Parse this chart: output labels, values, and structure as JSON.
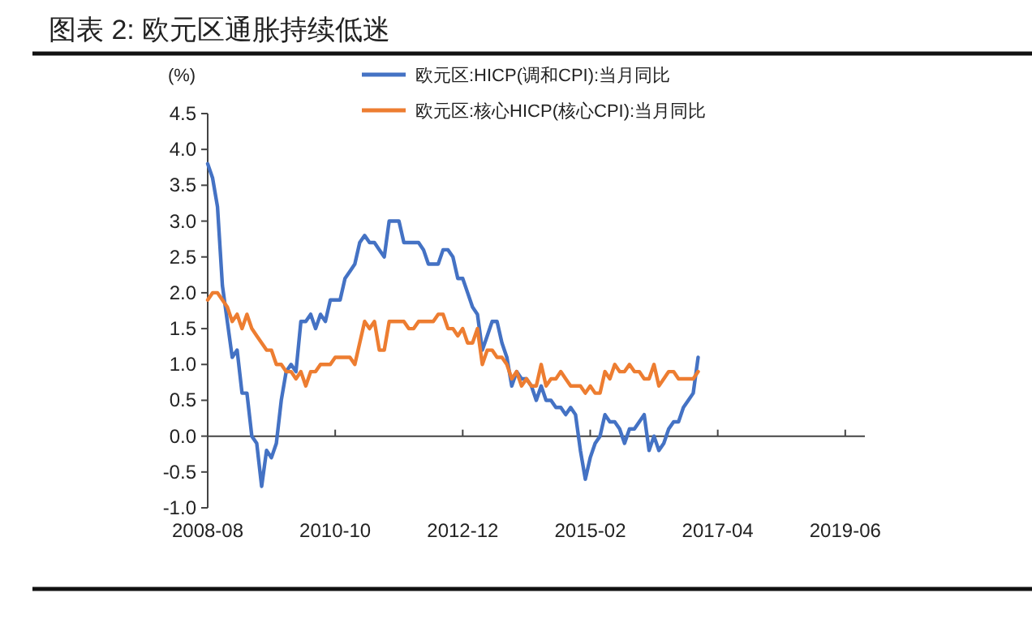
{
  "chart_data": {
    "type": "line",
    "title": "图表 2:   欧元区通胀持续低迷",
    "ylabel": "(%)",
    "x": [
      "2008-08",
      "2008-09",
      "2008-10",
      "2008-11",
      "2008-12",
      "2009-01",
      "2009-02",
      "2009-03",
      "2009-04",
      "2009-05",
      "2009-06",
      "2009-07",
      "2009-08",
      "2009-09",
      "2009-10",
      "2009-11",
      "2009-12",
      "2010-01",
      "2010-02",
      "2010-03",
      "2010-04",
      "2010-05",
      "2010-06",
      "2010-07",
      "2010-08",
      "2010-09",
      "2010-10",
      "2010-11",
      "2010-12",
      "2011-01",
      "2011-02",
      "2011-03",
      "2011-04",
      "2011-05",
      "2011-06",
      "2011-07",
      "2011-08",
      "2011-09",
      "2011-10",
      "2011-11",
      "2011-12",
      "2012-01",
      "2012-02",
      "2012-03",
      "2012-04",
      "2012-05",
      "2012-06",
      "2012-07",
      "2012-08",
      "2012-09",
      "2012-10",
      "2012-11",
      "2012-12",
      "2013-01",
      "2013-02",
      "2013-03",
      "2013-04",
      "2013-05",
      "2013-06",
      "2013-07",
      "2013-08",
      "2013-09",
      "2013-10",
      "2013-11",
      "2013-12",
      "2014-01",
      "2014-02",
      "2014-03",
      "2014-04",
      "2014-05",
      "2014-06",
      "2014-07",
      "2014-08",
      "2014-09",
      "2014-10",
      "2014-11",
      "2014-12",
      "2015-01",
      "2015-02",
      "2015-03",
      "2015-04",
      "2015-05",
      "2015-06",
      "2015-07",
      "2015-08",
      "2015-09",
      "2015-10",
      "2015-11",
      "2015-12",
      "2016-01",
      "2016-02",
      "2016-03",
      "2016-04",
      "2016-05",
      "2016-06",
      "2016-07",
      "2016-08",
      "2016-09",
      "2016-10",
      "2016-11",
      "2016-12"
    ],
    "series": [
      {
        "name": "欧元区:HICP(调和CPI):当月同比",
        "color": "#4472c4",
        "values": [
          3.8,
          3.6,
          3.2,
          2.1,
          1.6,
          1.1,
          1.2,
          0.6,
          0.6,
          0.0,
          -0.1,
          -0.7,
          -0.2,
          -0.3,
          -0.1,
          0.5,
          0.9,
          1.0,
          0.9,
          1.6,
          1.6,
          1.7,
          1.5,
          1.7,
          1.6,
          1.9,
          1.9,
          1.9,
          2.2,
          2.3,
          2.4,
          2.7,
          2.8,
          2.7,
          2.7,
          2.6,
          2.5,
          3.0,
          3.0,
          3.0,
          2.7,
          2.7,
          2.7,
          2.7,
          2.6,
          2.4,
          2.4,
          2.4,
          2.6,
          2.6,
          2.5,
          2.2,
          2.2,
          2.0,
          1.8,
          1.7,
          1.2,
          1.4,
          1.6,
          1.6,
          1.3,
          1.1,
          0.7,
          0.9,
          0.8,
          0.8,
          0.7,
          0.5,
          0.7,
          0.5,
          0.5,
          0.4,
          0.4,
          0.3,
          0.4,
          0.3,
          -0.2,
          -0.6,
          -0.3,
          -0.1,
          0.0,
          0.3,
          0.2,
          0.2,
          0.1,
          -0.1,
          0.1,
          0.1,
          0.2,
          0.3,
          -0.2,
          0.0,
          -0.2,
          -0.1,
          0.1,
          0.2,
          0.2,
          0.4,
          0.5,
          0.6,
          1.1
        ]
      },
      {
        "name": "欧元区:核心HICP(核心CPI):当月同比",
        "color": "#ed7d31",
        "values": [
          1.9,
          2.0,
          2.0,
          1.9,
          1.8,
          1.6,
          1.7,
          1.5,
          1.7,
          1.5,
          1.4,
          1.3,
          1.2,
          1.2,
          1.0,
          1.0,
          0.9,
          0.9,
          0.8,
          0.9,
          0.7,
          0.9,
          0.9,
          1.0,
          1.0,
          1.0,
          1.1,
          1.1,
          1.1,
          1.1,
          1.0,
          1.3,
          1.6,
          1.5,
          1.6,
          1.2,
          1.2,
          1.6,
          1.6,
          1.6,
          1.6,
          1.5,
          1.5,
          1.6,
          1.6,
          1.6,
          1.6,
          1.7,
          1.7,
          1.5,
          1.5,
          1.4,
          1.5,
          1.3,
          1.3,
          1.5,
          1.0,
          1.2,
          1.2,
          1.1,
          1.1,
          1.0,
          0.8,
          0.9,
          0.7,
          0.8,
          0.7,
          0.7,
          1.0,
          0.7,
          0.8,
          0.8,
          0.9,
          0.8,
          0.7,
          0.7,
          0.7,
          0.6,
          0.7,
          0.6,
          0.6,
          0.9,
          0.8,
          1.0,
          0.9,
          0.9,
          1.0,
          0.9,
          0.9,
          0.8,
          0.8,
          1.0,
          0.7,
          0.8,
          0.9,
          0.9,
          0.8,
          0.8,
          0.8,
          0.8,
          0.9
        ]
      }
    ],
    "xlim": [
      "2008-08",
      "2019-10"
    ],
    "xticks": [
      "2008-08",
      "2010-10",
      "2012-12",
      "2015-02",
      "2017-04",
      "2019-06"
    ],
    "ylim": [
      -1.0,
      4.5
    ],
    "yticks": [
      {
        "value": -1.0,
        "label": "-1.0"
      },
      -0.5,
      {
        "value": 0.0,
        "label": "0.0"
      },
      0.5,
      {
        "value": 1.0,
        "label": "1.0"
      },
      1.5,
      {
        "value": 2.0,
        "label": "2.0"
      },
      2.5,
      {
        "value": 3.0,
        "label": "3.0"
      },
      3.5,
      {
        "value": 4.0,
        "label": "4.0"
      },
      4.5
    ],
    "legend": "top",
    "marker": "none",
    "line_style": "solid"
  }
}
